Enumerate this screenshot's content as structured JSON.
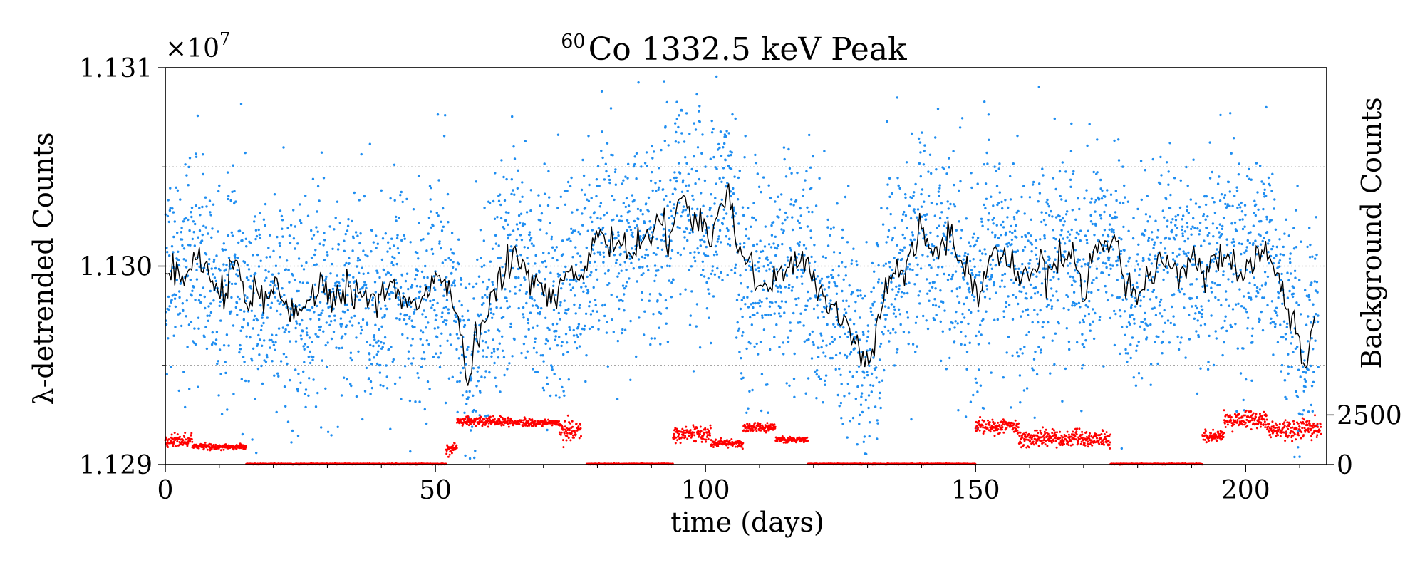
{
  "chart_data": {
    "type": "scatter",
    "title_superscript": "60",
    "title": "Co 1332.5 keV Peak",
    "xlabel": "time (days)",
    "ylabel": "λ-detrended Counts",
    "ylabel_right": "Background Counts",
    "multiplier_base": "×10",
    "multiplier_exponent": "7",
    "xlim": [
      0,
      215
    ],
    "ylim": [
      1.129,
      1.131
    ],
    "ylim_right": [
      0,
      20000
    ],
    "x_ticks": [
      0,
      50,
      100,
      150,
      200
    ],
    "x_tick_labels": [
      "0",
      "50",
      "100",
      "150",
      "200"
    ],
    "y_ticks": [
      1.129,
      1.13,
      1.131
    ],
    "y_tick_labels": [
      "1.129",
      "1.130",
      "1.131"
    ],
    "y_ticks_right": [
      0,
      2500
    ],
    "y_tick_labels_right": [
      "0",
      "2500"
    ],
    "grid_y": [
      1.1295,
      1.13,
      1.1305
    ],
    "colors": {
      "scatter": "#1f8ef1",
      "mean_line": "#000000",
      "background": "#ff0000",
      "grid": "#999999",
      "axes": "#000000"
    },
    "series": [
      {
        "name": "λ-detrended counts",
        "kind": "scatter",
        "note": "≈4300 points, ~20 per day, scattered about the running mean with σ≈0.00028e7",
        "axis": "left"
      },
      {
        "name": "running mean",
        "kind": "line",
        "axis": "left",
        "x": [
          0,
          1,
          2,
          3,
          4,
          5,
          6,
          7,
          8,
          9,
          10,
          11,
          12,
          13,
          14,
          15,
          16,
          17,
          18,
          19,
          20,
          22,
          24,
          26,
          28,
          30,
          32,
          34,
          36,
          38,
          40,
          42,
          44,
          46,
          48,
          50,
          52,
          53,
          54,
          55,
          56,
          58,
          60,
          62,
          64,
          66,
          68,
          70,
          72,
          74,
          76,
          78,
          79,
          80,
          82,
          84,
          86,
          88,
          90,
          92,
          93,
          94,
          95,
          96,
          97,
          98,
          99,
          100,
          101,
          102,
          103,
          104,
          105,
          106,
          108,
          110,
          112,
          114,
          116,
          118,
          120,
          122,
          124,
          126,
          128,
          130,
          131,
          132,
          134,
          136,
          138,
          140,
          142,
          144,
          146,
          148,
          150,
          152,
          154,
          156,
          158,
          160,
          162,
          164,
          166,
          168,
          170,
          172,
          174,
          176,
          178,
          180,
          182,
          184,
          186,
          188,
          190,
          192,
          194,
          196,
          198,
          200,
          202,
          204,
          206,
          208,
          209,
          210,
          211,
          212,
          213
        ],
        "y": [
          1.13,
          1.12999,
          1.12998,
          1.12996,
          1.12997,
          1.13002,
          1.13005,
          1.12999,
          1.12997,
          1.12994,
          1.12985,
          1.12983,
          1.12995,
          1.13008,
          1.12992,
          1.12983,
          1.12985,
          1.12985,
          1.12984,
          1.12984,
          1.12987,
          1.12984,
          1.12979,
          1.12977,
          1.12985,
          1.12987,
          1.12987,
          1.12986,
          1.12983,
          1.12983,
          1.12984,
          1.12991,
          1.12983,
          1.12982,
          1.12985,
          1.12995,
          1.12991,
          1.12981,
          1.12974,
          1.12958,
          1.1294,
          1.12968,
          1.12982,
          1.12992,
          1.13005,
          1.13,
          1.12994,
          1.12989,
          1.12983,
          1.12993,
          1.12996,
          1.12996,
          1.13015,
          1.13017,
          1.13014,
          1.13011,
          1.13008,
          1.13015,
          1.13016,
          1.13024,
          1.13013,
          1.13018,
          1.13041,
          1.13033,
          1.13028,
          1.13021,
          1.13023,
          1.13023,
          1.13003,
          1.13023,
          1.13032,
          1.13039,
          1.13022,
          1.13011,
          1.13,
          1.12989,
          1.1299,
          1.13001,
          1.13002,
          1.13008,
          1.12992,
          1.12985,
          1.12978,
          1.12969,
          1.12961,
          1.12951,
          1.12958,
          1.1297,
          1.12989,
          1.12993,
          1.13008,
          1.13018,
          1.13008,
          1.13012,
          1.13013,
          1.12995,
          1.12989,
          1.12999,
          1.13002,
          1.13005,
          1.12995,
          1.12995,
          1.13003,
          1.12996,
          1.13008,
          1.13006,
          1.12986,
          1.13011,
          1.13011,
          1.13012,
          1.12985,
          1.12984,
          1.12994,
          1.13001,
          1.13002,
          1.12998,
          1.13006,
          1.12994,
          1.13007,
          1.13001,
          1.13004,
          1.12996,
          1.13005,
          1.13008,
          1.12993,
          1.12976,
          1.12973,
          1.12955,
          1.12943,
          1.12966,
          1.12975
        ]
      },
      {
        "name": "background counts",
        "kind": "scatter",
        "axis": "right",
        "segments": [
          {
            "x": [
              0,
              5
            ],
            "level": 1200,
            "jitter": 170
          },
          {
            "x": [
              5,
              15
            ],
            "level": 900,
            "jitter": 70
          },
          {
            "x": [
              15,
              52
            ],
            "level": 30,
            "jitter": 10
          },
          {
            "x": [
              52,
              54
            ],
            "level": 800,
            "jitter": 130
          },
          {
            "x": [
              54,
              59
            ],
            "level": 2200,
            "jitter": 110
          },
          {
            "x": [
              59,
              67
            ],
            "level": 2150,
            "jitter": 120
          },
          {
            "x": [
              67,
              73
            ],
            "level": 2100,
            "jitter": 80
          },
          {
            "x": [
              73,
              77
            ],
            "level": 1700,
            "jitter": 280
          },
          {
            "x": [
              78,
              94
            ],
            "level": 30,
            "jitter": 10
          },
          {
            "x": [
              94,
              101
            ],
            "level": 1550,
            "jitter": 200
          },
          {
            "x": [
              101,
              107
            ],
            "level": 1050,
            "jitter": 90
          },
          {
            "x": [
              107,
              113
            ],
            "level": 1850,
            "jitter": 110
          },
          {
            "x": [
              113,
              119
            ],
            "level": 1250,
            "jitter": 70
          },
          {
            "x": [
              119,
              150
            ],
            "level": 30,
            "jitter": 10
          },
          {
            "x": [
              150,
              158
            ],
            "level": 1950,
            "jitter": 180
          },
          {
            "x": [
              158,
              170
            ],
            "level": 1350,
            "jitter": 200
          },
          {
            "x": [
              170,
              175
            ],
            "level": 1250,
            "jitter": 190
          },
          {
            "x": [
              175,
              192
            ],
            "level": 30,
            "jitter": 10
          },
          {
            "x": [
              192,
              196
            ],
            "level": 1450,
            "jitter": 140
          },
          {
            "x": [
              196,
              204
            ],
            "level": 2250,
            "jitter": 220
          },
          {
            "x": [
              204,
              214
            ],
            "level": 1800,
            "jitter": 230
          }
        ]
      }
    ]
  }
}
